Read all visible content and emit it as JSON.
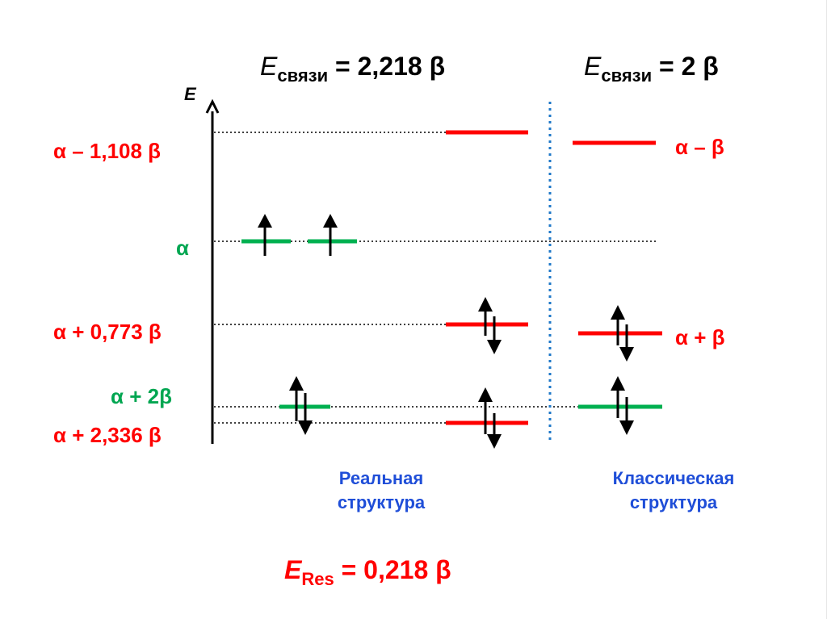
{
  "axis": {
    "label": "E"
  },
  "energy_labels": {
    "left": [
      {
        "text": "α – 1,108 β",
        "color": "#ff0000"
      },
      {
        "text": "α",
        "color": "#00a651"
      },
      {
        "text": "α + 0,773 β",
        "color": "#ff0000"
      },
      {
        "text": "α + 2β",
        "color": "#00a651"
      },
      {
        "text": "α + 2,336 β",
        "color": "#ff0000"
      }
    ],
    "right": [
      {
        "text": "α – β",
        "color": "#ff0000"
      },
      {
        "text": "α + β",
        "color": "#ff0000"
      }
    ]
  },
  "bond_energy": {
    "real": {
      "symbol": "E",
      "subscript": "связи",
      "value": "=  2,218 β"
    },
    "classical": {
      "symbol": "E",
      "subscript": "связи",
      "value": "=  2 β"
    }
  },
  "structures": {
    "real": {
      "line1": "Реальная",
      "line2": "структура"
    },
    "classical": {
      "line1": "Классическая",
      "line2": "структура"
    }
  },
  "resonance": {
    "symbol": "E",
    "subscript": "Res",
    "value": "=  0,218 β"
  },
  "colors": {
    "level_red": "#ff0000",
    "level_green": "#00b050",
    "separator_blue": "#1f78c8",
    "arrow": "#000000"
  }
}
